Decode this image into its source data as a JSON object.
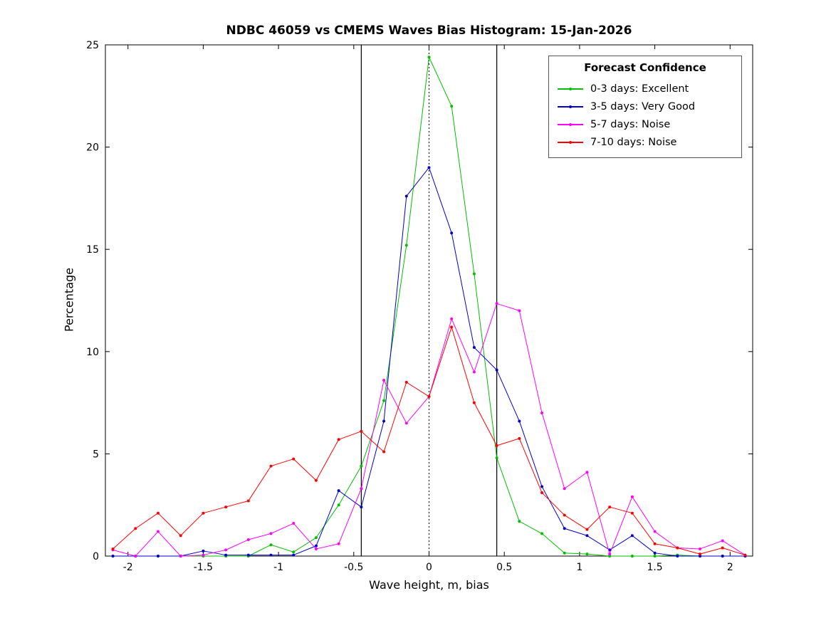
{
  "title": "NDBC 46059 vs CMEMS Waves Bias Histogram: 15-Jan-2026",
  "chart_data": {
    "type": "line",
    "title": "NDBC 46059 vs CMEMS Waves Bias Histogram: 15-Jan-2026",
    "xlabel": "Wave height, m, bias",
    "ylabel": "Percentage",
    "xlim": [
      -2.15,
      2.15
    ],
    "ylim": [
      0,
      25
    ],
    "xticks": [
      -2,
      -1.5,
      -1,
      -0.5,
      0,
      0.5,
      1,
      1.5,
      2
    ],
    "yticks": [
      0,
      5,
      10,
      15,
      20,
      25
    ],
    "grid": false,
    "legend_title": "Forecast Confidence",
    "legend_position": "top-right",
    "x": [
      -2.1,
      -1.95,
      -1.8,
      -1.65,
      -1.5,
      -1.35,
      -1.2,
      -1.05,
      -0.9,
      -0.75,
      -0.6,
      -0.45,
      -0.3,
      -0.15,
      0,
      0.15,
      0.3,
      0.45,
      0.6,
      0.75,
      0.9,
      1.05,
      1.2,
      1.35,
      1.5,
      1.65,
      1.8,
      1.95,
      2.1
    ],
    "series": [
      {
        "name": "0-3 days: Excellent",
        "color": "#00c000",
        "values": [
          0,
          0,
          0,
          0,
          0,
          0,
          0,
          0.55,
          0.2,
          0.9,
          2.5,
          4.4,
          7.6,
          15.2,
          24.4,
          22.0,
          13.8,
          4.8,
          1.7,
          1.1,
          0.15,
          0.1,
          0,
          0,
          0,
          0.05,
          0,
          0,
          0
        ]
      },
      {
        "name": "3-5 days: Very Good",
        "color": "#0000cd",
        "values": [
          0,
          0,
          0,
          0,
          0.25,
          0.05,
          0.05,
          0.05,
          0.05,
          0.5,
          3.2,
          2.4,
          6.6,
          17.6,
          19.0,
          15.8,
          10.2,
          9.1,
          6.6,
          3.4,
          1.35,
          1.0,
          0.3,
          1.0,
          0.15,
          0,
          0,
          0,
          0
        ]
      },
      {
        "name": "5-7 days: Noise",
        "color": "#ff00ff",
        "values": [
          0.3,
          0,
          1.2,
          0,
          0.05,
          0.3,
          0.8,
          1.1,
          1.6,
          0.35,
          0.6,
          3.3,
          8.6,
          6.5,
          7.8,
          11.6,
          9.0,
          12.35,
          12.0,
          7.0,
          3.3,
          4.1,
          0.1,
          2.9,
          1.2,
          0.4,
          0.35,
          0.75,
          0.05
        ]
      },
      {
        "name": "7-10 days: Noise",
        "color": "#ff0000",
        "values": [
          0.35,
          1.35,
          2.1,
          1.0,
          2.1,
          2.4,
          2.7,
          4.4,
          4.75,
          3.7,
          5.7,
          6.1,
          5.1,
          8.5,
          7.8,
          11.2,
          7.5,
          5.4,
          5.75,
          3.1,
          2.0,
          1.3,
          2.4,
          2.1,
          0.6,
          0.4,
          0.1,
          0.4,
          0.05
        ]
      }
    ],
    "reference_lines": [
      {
        "x": -0.45,
        "style": "solid",
        "color": "#000000"
      },
      {
        "x": 0,
        "style": "dotted",
        "color": "#000000"
      },
      {
        "x": 0.45,
        "style": "solid",
        "color": "#000000"
      }
    ]
  }
}
